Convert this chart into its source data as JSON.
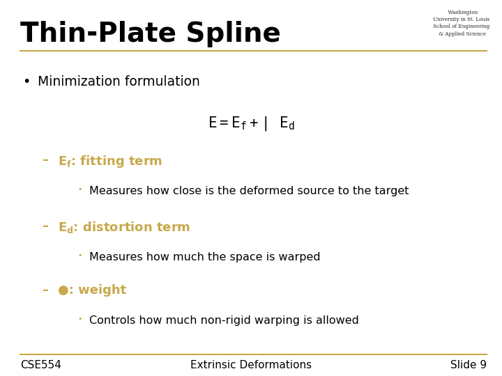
{
  "title": "Thin-Plate Spline",
  "title_fontsize": 28,
  "title_fontweight": "bold",
  "bg_color": "#ffffff",
  "line_color": "#c8a84b",
  "footer_line_color": "#c8a84b",
  "text_color": "#000000",
  "orange_color": "#c8a84b",
  "footer_left": "CSE554",
  "footer_center": "Extrinsic Deformations",
  "footer_right": "Slide 9",
  "footer_fontsize": 11
}
